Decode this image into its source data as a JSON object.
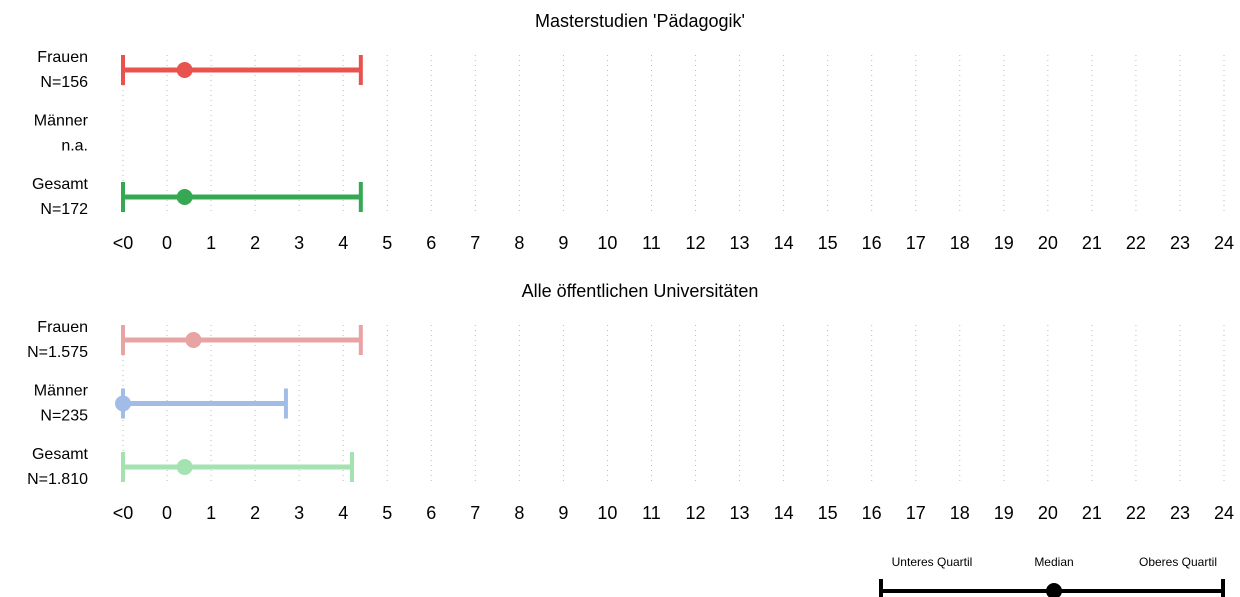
{
  "chart_data": [
    {
      "type": "quartile-range",
      "title": "Masterstudien 'Pädagogik'",
      "xlim": [
        -1,
        24
      ],
      "xticks": [
        {
          "value": -1,
          "label": "<0"
        },
        0,
        1,
        2,
        3,
        4,
        5,
        6,
        7,
        8,
        9,
        10,
        11,
        12,
        13,
        14,
        15,
        16,
        17,
        18,
        19,
        20,
        21,
        22,
        23,
        24
      ],
      "grid": true,
      "series": [
        {
          "name": "Frauen",
          "n": "N=156",
          "color": "#e8534f",
          "q1": -1,
          "median": 0.4,
          "q3": 4.4
        },
        {
          "name": "Männer",
          "n": "n.a.",
          "color": "#5b8fd6",
          "q1": null,
          "median": null,
          "q3": null
        },
        {
          "name": "Gesamt",
          "n": "N=172",
          "color": "#35a853",
          "q1": -1,
          "median": 0.4,
          "q3": 4.4
        }
      ]
    },
    {
      "type": "quartile-range",
      "title": "Alle öffentlichen Universitäten",
      "xlim": [
        -1,
        24
      ],
      "xticks": [
        {
          "value": -1,
          "label": "<0"
        },
        0,
        1,
        2,
        3,
        4,
        5,
        6,
        7,
        8,
        9,
        10,
        11,
        12,
        13,
        14,
        15,
        16,
        17,
        18,
        19,
        20,
        21,
        22,
        23,
        24
      ],
      "grid": true,
      "series": [
        {
          "name": "Frauen",
          "n": "N=1.575",
          "color": "#e8a3a3",
          "q1": -1,
          "median": 0.6,
          "q3": 4.4
        },
        {
          "name": "Männer",
          "n": "N=235",
          "color": "#a1bce6",
          "q1": -1,
          "median": -1,
          "q3": 2.7
        },
        {
          "name": "Gesamt",
          "n": "N=1.810",
          "color": "#a4e2b2",
          "q1": -1,
          "median": 0.4,
          "q3": 4.2
        }
      ]
    }
  ],
  "legend": {
    "lower": "Unteres Quartil",
    "median": "Median",
    "upper": "Oberes Quartil"
  }
}
